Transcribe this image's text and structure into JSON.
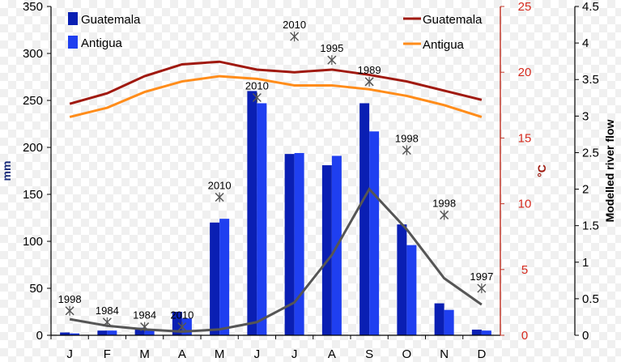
{
  "chart_data": {
    "type": "bar",
    "categories": [
      "J",
      "F",
      "M",
      "A",
      "M",
      "J",
      "J",
      "A",
      "S",
      "O",
      "N",
      "D"
    ],
    "left_axis": {
      "label": "mm",
      "ylim": [
        0,
        350
      ],
      "ticks": [
        "0",
        "50",
        "100",
        "150",
        "200",
        "250",
        "300",
        "350"
      ]
    },
    "right_axis_temp": {
      "label": "°C",
      "ylim": [
        0,
        25
      ],
      "ticks": [
        "0",
        "5",
        "10",
        "15",
        "20",
        "25"
      ],
      "color": "#c0392b"
    },
    "right_axis_flow": {
      "label": "Modelled river flow",
      "ylim": [
        0,
        4.5
      ],
      "ticks": [
        "0",
        "0.5",
        "1",
        "1.5",
        "2",
        "2.5",
        "3",
        "3.5",
        "4",
        "4.5"
      ]
    },
    "bar_series": [
      {
        "name": "Guatemala",
        "color": "#0a1fb3",
        "values": [
          3,
          5,
          8,
          25,
          120,
          260,
          193,
          181,
          247,
          118,
          34,
          6
        ]
      },
      {
        "name": "Antigua",
        "color": "#1f3ff0",
        "values": [
          2,
          5,
          6,
          18,
          124,
          247,
          194,
          191,
          217,
          96,
          27,
          5
        ]
      }
    ],
    "temperature_series": [
      {
        "name": "Guatemala",
        "color": "#a0190f",
        "values": [
          17.6,
          18.4,
          19.7,
          20.6,
          20.8,
          20.2,
          20.0,
          20.2,
          19.8,
          19.3,
          18.6,
          17.9
        ]
      },
      {
        "name": "Antigua",
        "color": "#ff8c1a",
        "values": [
          16.6,
          17.3,
          18.5,
          19.3,
          19.7,
          19.5,
          19.0,
          19.0,
          18.7,
          18.2,
          17.5,
          16.6
        ]
      }
    ],
    "flow_series": {
      "color": "#555555",
      "values": [
        0.22,
        0.13,
        0.08,
        0.05,
        0.08,
        0.18,
        0.45,
        1.1,
        2.0,
        1.45,
        0.78,
        0.42
      ]
    },
    "extreme_markers": [
      {
        "month": "J",
        "mm": 26,
        "year": "1998"
      },
      {
        "month": "F",
        "mm": 14,
        "year": "1984"
      },
      {
        "month": "M",
        "mm": 9,
        "year": "1984"
      },
      {
        "month": "A",
        "mm": 9,
        "year": "2010"
      },
      {
        "month": "M",
        "mm": 147,
        "year": "2010"
      },
      {
        "month": "J",
        "mm": 253,
        "year": "2010"
      },
      {
        "month": "J",
        "mm": 318,
        "year": "2010"
      },
      {
        "month": "A",
        "mm": 293,
        "year": "1995"
      },
      {
        "month": "S",
        "mm": 270,
        "year": "1989"
      },
      {
        "month": "O",
        "mm": 197,
        "year": "1998"
      },
      {
        "month": "N",
        "mm": 128,
        "year": "1998"
      },
      {
        "month": "D",
        "mm": 50,
        "year": "1997"
      }
    ],
    "grid": false,
    "legend_left": "top-left",
    "legend_right": "top-right"
  }
}
